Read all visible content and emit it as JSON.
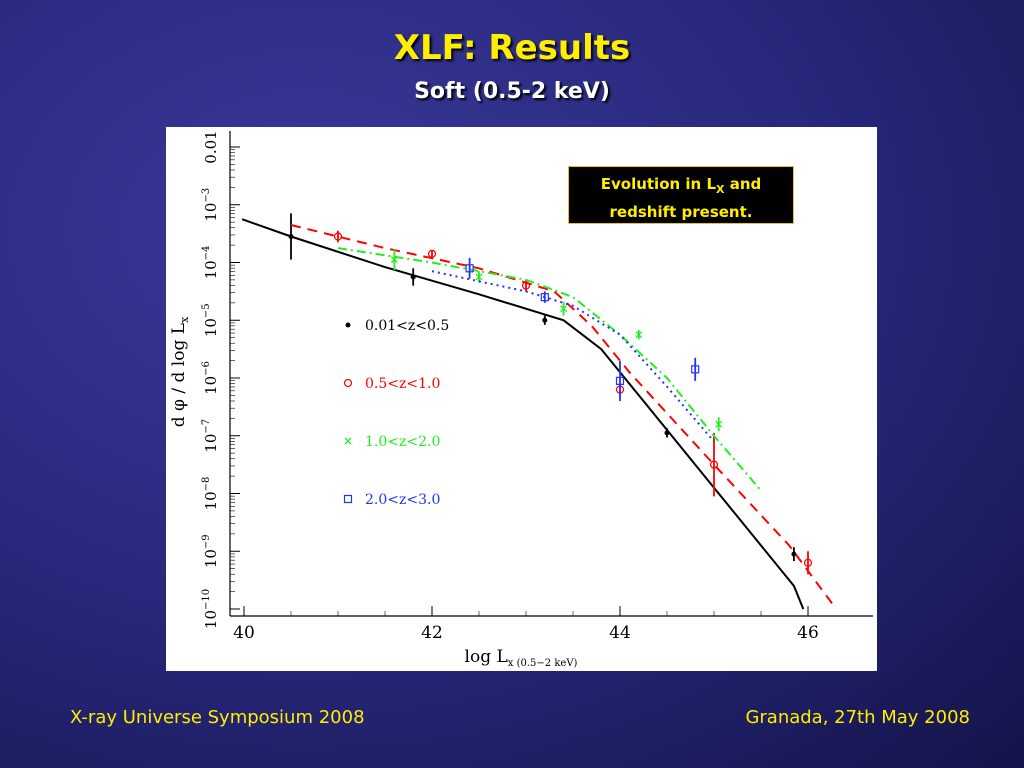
{
  "slide": {
    "title": "XLF: Results",
    "subtitle": "Soft (0.5-2 keV)",
    "callout": {
      "line1_pre": "Evolution in L",
      "line1_sub": "X",
      "line1_post": " and",
      "line2": "redshift present."
    },
    "footer_left": "X-ray Universe Symposium 2008",
    "footer_right": "Granada, 27th May 2008",
    "title_color": "#ffee00"
  },
  "chart_data": {
    "type": "line",
    "xlabel": "log L",
    "xlabel_sub": "x (0.5−2 keV)",
    "ylabel": "d φ / d log L",
    "ylabel_sub": "x",
    "xlim": [
      40,
      46.5
    ],
    "ylim": [
      -10,
      -2
    ],
    "y_log_scale": true,
    "x_ticks": [
      "40",
      "42",
      "44",
      "46"
    ],
    "x_tick_values": [
      40,
      42,
      44,
      46
    ],
    "y_ticks": [
      {
        "value": -2,
        "base": "0.01",
        "exp": ""
      },
      {
        "value": -3,
        "base": "10",
        "exp": "−3"
      },
      {
        "value": -4,
        "base": "10",
        "exp": "−4"
      },
      {
        "value": -5,
        "base": "10",
        "exp": "−5"
      },
      {
        "value": -6,
        "base": "10",
        "exp": "−6"
      },
      {
        "value": -7,
        "base": "10",
        "exp": "−7"
      },
      {
        "value": -8,
        "base": "10",
        "exp": "−8"
      },
      {
        "value": -9,
        "base": "10",
        "exp": "−9"
      },
      {
        "value": -10,
        "base": "10",
        "exp": "−10"
      }
    ],
    "series": [
      {
        "name": "0.01<z<0.5",
        "color": "#000000",
        "marker": "dot",
        "dash": "",
        "model": [
          [
            39.98,
            -3.25
          ],
          [
            40.5,
            -3.55
          ],
          [
            41.5,
            -4.08
          ],
          [
            42.5,
            -4.55
          ],
          [
            43.4,
            -5.0
          ],
          [
            43.8,
            -5.5
          ],
          [
            44.2,
            -6.3
          ],
          [
            45.0,
            -7.9
          ],
          [
            45.85,
            -9.6
          ],
          [
            45.95,
            -10.0
          ]
        ],
        "points": [
          [
            40.5,
            -3.55,
            0.4
          ],
          [
            41.8,
            -4.25,
            0.15
          ],
          [
            43.2,
            -5.0,
            0.08
          ],
          [
            44.5,
            -6.95,
            0.08
          ],
          [
            45.85,
            -9.05,
            0.12
          ]
        ]
      },
      {
        "name": "0.5<z<1.0",
        "color": "#ff0000",
        "marker": "circle",
        "dash": "10,7",
        "model": [
          [
            40.5,
            -3.35
          ],
          [
            41.5,
            -3.75
          ],
          [
            42.5,
            -4.1
          ],
          [
            43.3,
            -4.5
          ],
          [
            43.7,
            -5.1
          ],
          [
            44.1,
            -5.9
          ],
          [
            45.0,
            -7.5
          ],
          [
            45.8,
            -8.9
          ],
          [
            46.3,
            -10.0
          ]
        ],
        "points": [
          [
            41.0,
            -3.55,
            0.1
          ],
          [
            42.0,
            -3.85,
            0.06
          ],
          [
            43.0,
            -4.4,
            0.1
          ],
          [
            44.0,
            -6.2,
            0.1
          ],
          [
            45.0,
            -7.5,
            0.55
          ],
          [
            46.0,
            -9.2,
            0.2
          ]
        ]
      },
      {
        "name": "1.0<z<2.0",
        "color": "#22ee22",
        "marker": "cross",
        "dash": "9,4,2,4",
        "model": [
          [
            41.0,
            -3.75
          ],
          [
            42.0,
            -4.0
          ],
          [
            43.0,
            -4.3
          ],
          [
            43.5,
            -4.6
          ],
          [
            44.0,
            -5.25
          ],
          [
            44.5,
            -6.0
          ],
          [
            45.0,
            -7.0
          ],
          [
            45.5,
            -7.95
          ]
        ],
        "points": [
          [
            41.6,
            -3.95,
            0.18
          ],
          [
            42.5,
            -4.25,
            0.1
          ],
          [
            43.4,
            -4.8,
            0.12
          ],
          [
            44.2,
            -5.25,
            0.08
          ],
          [
            45.05,
            -6.8,
            0.12
          ]
        ]
      },
      {
        "name": "2.0<z<3.0",
        "color": "#2233ff",
        "marker": "square",
        "dash": "2,4",
        "model": [
          [
            42.0,
            -4.15
          ],
          [
            43.0,
            -4.5
          ],
          [
            43.5,
            -4.75
          ],
          [
            44.0,
            -5.25
          ],
          [
            44.5,
            -6.15
          ],
          [
            45.0,
            -7.1
          ]
        ],
        "points": [
          [
            42.4,
            -4.1,
            0.18
          ],
          [
            43.2,
            -4.6,
            0.1
          ],
          [
            44.0,
            -6.05,
            0.35
          ],
          [
            44.8,
            -5.85,
            0.2
          ]
        ]
      }
    ]
  }
}
